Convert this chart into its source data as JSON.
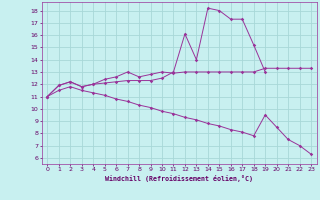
{
  "xlabel": "Windchill (Refroidissement éolien,°C)",
  "background_color": "#c8f0f0",
  "grid_color": "#a8d8d8",
  "line_color": "#993399",
  "xlim": [
    -0.5,
    23.5
  ],
  "ylim": [
    5.5,
    18.7
  ],
  "xticks": [
    0,
    1,
    2,
    3,
    4,
    5,
    6,
    7,
    8,
    9,
    10,
    11,
    12,
    13,
    14,
    15,
    16,
    17,
    18,
    19,
    20,
    21,
    22,
    23
  ],
  "yticks": [
    6,
    7,
    8,
    9,
    10,
    11,
    12,
    13,
    14,
    15,
    16,
    17,
    18
  ],
  "line1_x": [
    0,
    1,
    2,
    3,
    4,
    5,
    6,
    7,
    8,
    9,
    10,
    11,
    12,
    13,
    14,
    15,
    16,
    17,
    18,
    19,
    20,
    21,
    22,
    23
  ],
  "line1_y": [
    11.0,
    11.9,
    12.2,
    11.8,
    12.0,
    12.4,
    12.6,
    13.0,
    12.6,
    12.8,
    13.0,
    12.9,
    13.0,
    13.0,
    13.0,
    13.0,
    13.0,
    13.0,
    13.0,
    13.3,
    13.3,
    13.3,
    13.3,
    13.3
  ],
  "line2_x": [
    0,
    1,
    2,
    3,
    4,
    5,
    6,
    7,
    8,
    9,
    10,
    11,
    12,
    13,
    14,
    15,
    16,
    17,
    18,
    19
  ],
  "line2_y": [
    11.0,
    11.9,
    12.2,
    11.8,
    12.0,
    12.1,
    12.2,
    12.3,
    12.3,
    12.3,
    12.5,
    13.0,
    16.1,
    14.0,
    18.2,
    18.0,
    17.3,
    17.3,
    15.2,
    13.0
  ],
  "line3_x": [
    0,
    1,
    2,
    3,
    4,
    5,
    6,
    7,
    8,
    9,
    10,
    11,
    12,
    13,
    14,
    15,
    16,
    17,
    18,
    19,
    20,
    21,
    22,
    23
  ],
  "line3_y": [
    11.0,
    11.5,
    11.8,
    11.5,
    11.3,
    11.1,
    10.8,
    10.6,
    10.3,
    10.1,
    9.8,
    9.6,
    9.3,
    9.1,
    8.8,
    8.6,
    8.3,
    8.1,
    7.8,
    9.5,
    8.5,
    7.5,
    7.0,
    6.3
  ]
}
